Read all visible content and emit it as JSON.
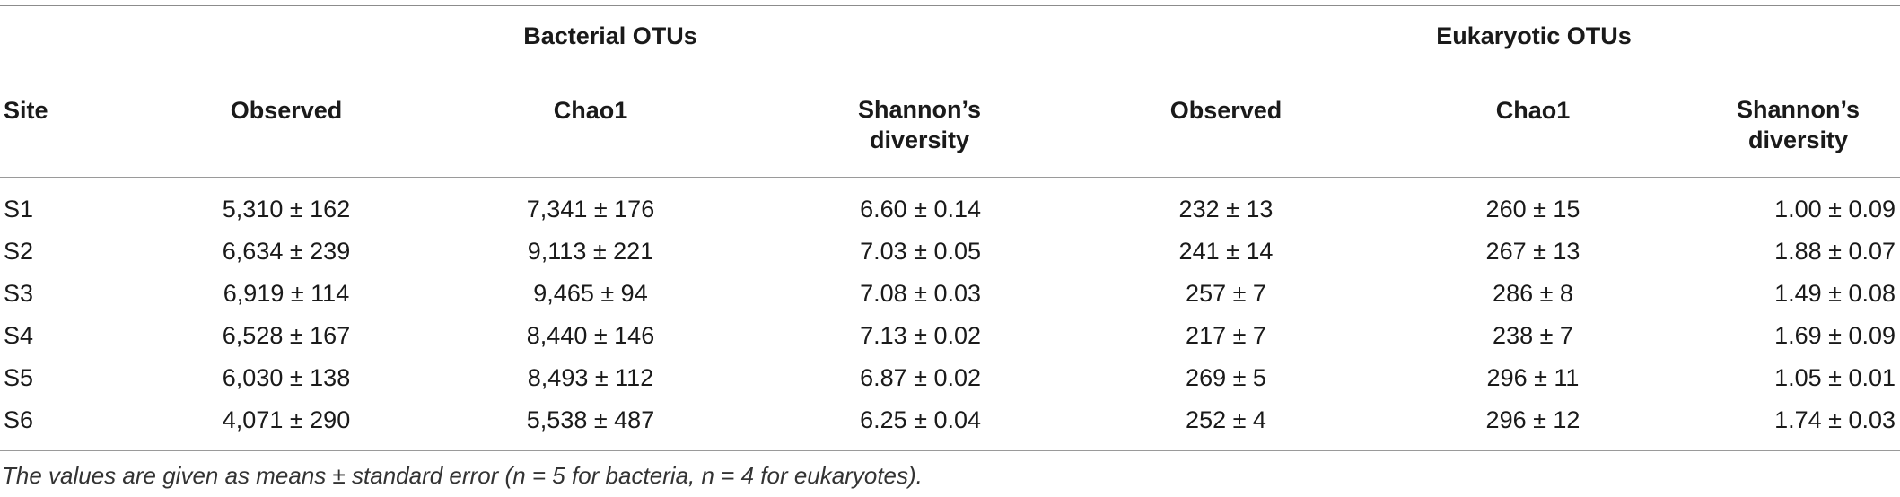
{
  "table": {
    "groups": [
      {
        "label": "Bacterial OTUs"
      },
      {
        "label": "Eukaryotic OTUs"
      }
    ],
    "site_header": "Site",
    "columns": {
      "observed": "Observed",
      "chao1": "Chao1",
      "shannon_line1": "Shannon’s",
      "shannon_line2": "diversity"
    },
    "rows": [
      {
        "site": "S1",
        "b_obs": "5,310 ± 162",
        "b_chao": "7,341 ± 176",
        "b_shan": "6.60 ± 0.14",
        "e_obs": "232 ± 13",
        "e_chao": "260 ± 15",
        "e_shan": "1.00 ± 0.09"
      },
      {
        "site": "S2",
        "b_obs": "6,634 ± 239",
        "b_chao": "9,113 ± 221",
        "b_shan": "7.03 ± 0.05",
        "e_obs": "241 ± 14",
        "e_chao": "267 ± 13",
        "e_shan": "1.88 ± 0.07"
      },
      {
        "site": "S3",
        "b_obs": "6,919 ± 114",
        "b_chao": "9,465 ± 94",
        "b_shan": "7.08 ± 0.03",
        "e_obs": "257 ± 7",
        "e_chao": "286 ± 8",
        "e_shan": "1.49 ± 0.08"
      },
      {
        "site": "S4",
        "b_obs": "6,528 ± 167",
        "b_chao": "8,440 ± 146",
        "b_shan": "7.13 ± 0.02",
        "e_obs": "217 ± 7",
        "e_chao": "238 ± 7",
        "e_shan": "1.69 ± 0.09"
      },
      {
        "site": "S5",
        "b_obs": "6,030 ± 138",
        "b_chao": "8,493 ± 112",
        "b_shan": "6.87 ± 0.02",
        "e_obs": "269 ± 5",
        "e_chao": "296 ± 11",
        "e_shan": "1.05 ± 0.01"
      },
      {
        "site": "S6",
        "b_obs": "4,071 ± 290",
        "b_chao": "5,538 ± 487",
        "b_shan": "6.25 ± 0.04",
        "e_obs": "252 ± 4",
        "e_chao": "296 ± 12",
        "e_shan": "1.74 ± 0.03"
      }
    ],
    "footnote": "The values are given as means ± standard error (n = 5 for bacteria, n = 4 for eukaryotes)."
  }
}
